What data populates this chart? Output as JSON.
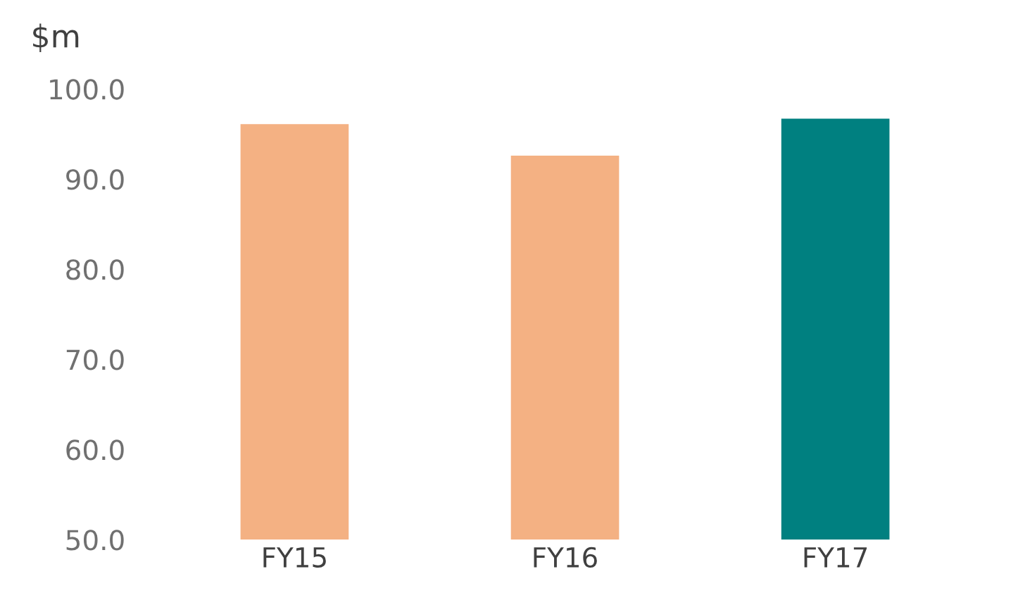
{
  "chart_data": {
    "type": "bar",
    "ylabel": "$m",
    "categories": [
      "FY15",
      "FY16",
      "FY17"
    ],
    "values": [
      96.1,
      92.6,
      96.7
    ],
    "colors": [
      "#f4b183",
      "#f4b183",
      "#008080"
    ],
    "ylim": [
      50,
      100
    ],
    "yticks": [
      {
        "value": 50,
        "label": "50.0"
      },
      {
        "value": 60,
        "label": "60.0"
      },
      {
        "value": 70,
        "label": "70.0"
      },
      {
        "value": 80,
        "label": "80.0"
      },
      {
        "value": 90,
        "label": "90.0"
      },
      {
        "value": 100,
        "label": "100.0"
      }
    ],
    "grid": false,
    "legend": false
  }
}
